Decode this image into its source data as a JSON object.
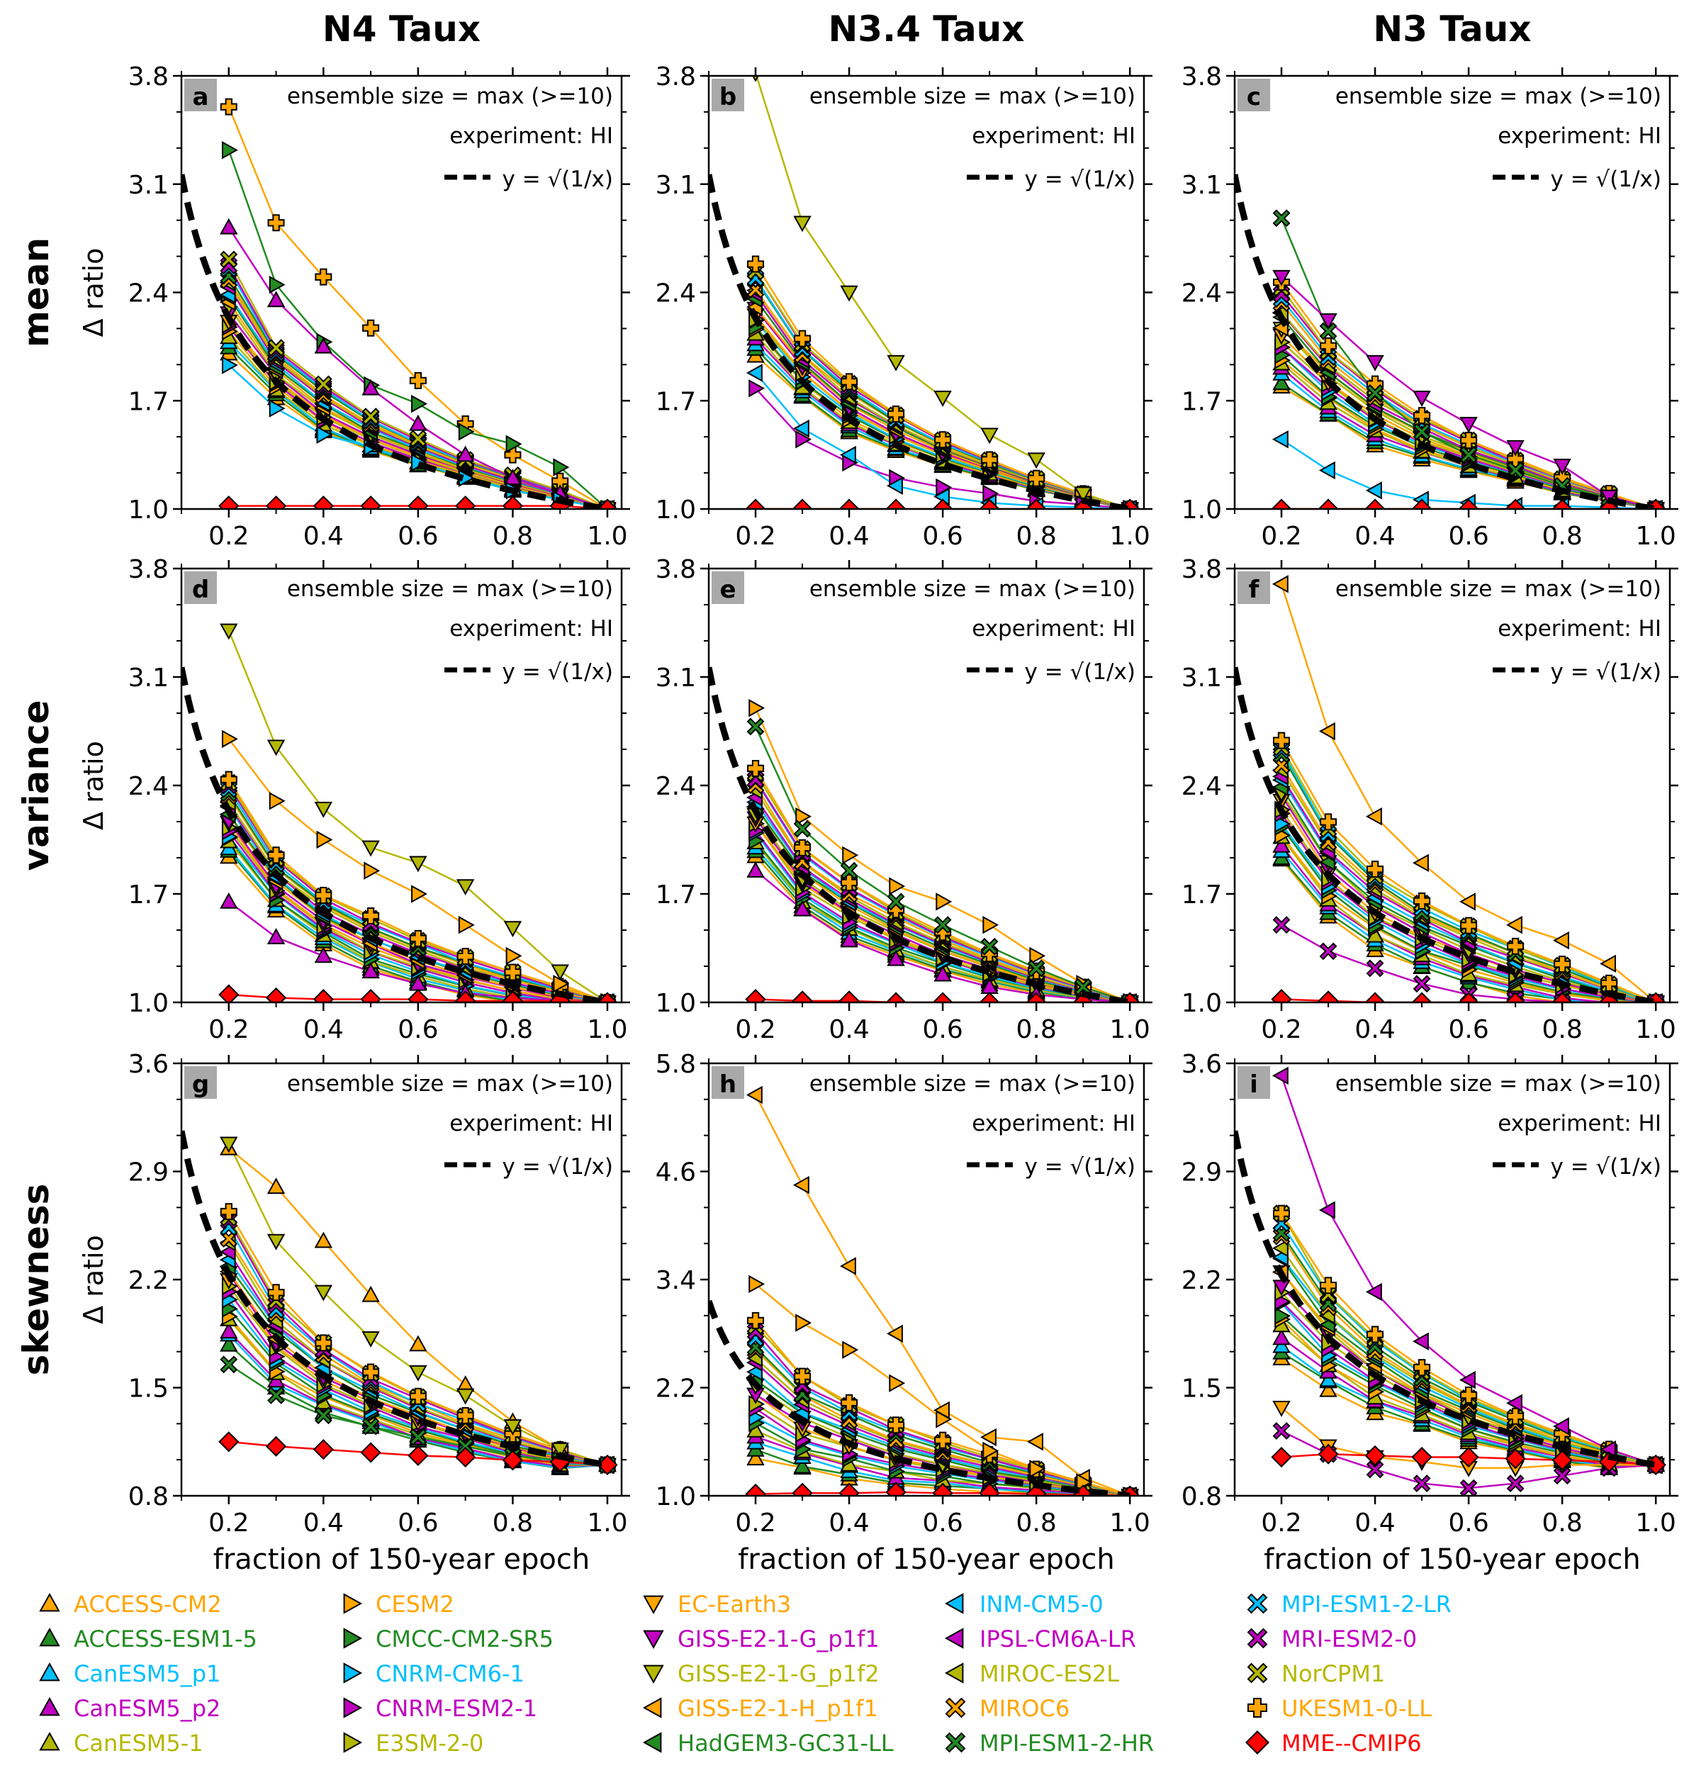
{
  "column_titles": [
    "N4 Taux",
    "N3.4 Taux",
    "N3 Taux"
  ],
  "row_titles": [
    "mean",
    "variance",
    "skewness"
  ],
  "y_axis_label": "Δ ratio",
  "x_axis_label": "fraction of 150-year epoch",
  "annotation_line1": "ensemble size = max (>=10)",
  "annotation_line2": "experiment: HI",
  "reference_label": "y = √(1/x)",
  "colors": {
    "orange": "#FFA500",
    "green": "#228B22",
    "cyan": "#00BFFF",
    "magenta": "#C000C0",
    "olive": "#B5B800",
    "red": "#FF0000",
    "panel_letter_bg": "#A9A9A9"
  },
  "legend": [
    {
      "name": "ACCESS-CM2",
      "marker": "triangle-up",
      "color": "#FFA500"
    },
    {
      "name": "ACCESS-ESM1-5",
      "marker": "triangle-up",
      "color": "#228B22"
    },
    {
      "name": "CanESM5_p1",
      "marker": "triangle-up",
      "color": "#00BFFF"
    },
    {
      "name": "CanESM5_p2",
      "marker": "triangle-up",
      "color": "#C000C0"
    },
    {
      "name": "CanESM5-1",
      "marker": "triangle-up",
      "color": "#B5B800"
    },
    {
      "name": "CESM2",
      "marker": "triangle-right",
      "color": "#FFA500"
    },
    {
      "name": "CMCC-CM2-SR5",
      "marker": "triangle-right",
      "color": "#228B22"
    },
    {
      "name": "CNRM-CM6-1",
      "marker": "triangle-right",
      "color": "#00BFFF"
    },
    {
      "name": "CNRM-ESM2-1",
      "marker": "triangle-right",
      "color": "#C000C0"
    },
    {
      "name": "E3SM-2-0",
      "marker": "triangle-right",
      "color": "#B5B800"
    },
    {
      "name": "EC-Earth3",
      "marker": "triangle-down",
      "color": "#FFA500"
    },
    {
      "name": "GISS-E2-1-G_p1f1",
      "marker": "triangle-down",
      "color": "#C000C0"
    },
    {
      "name": "GISS-E2-1-G_p1f2",
      "marker": "triangle-down",
      "color": "#B5B800"
    },
    {
      "name": "GISS-E2-1-H_p1f1",
      "marker": "triangle-left",
      "color": "#FFA500"
    },
    {
      "name": "HadGEM3-GC31-LL",
      "marker": "triangle-left",
      "color": "#228B22"
    },
    {
      "name": "INM-CM5-0",
      "marker": "triangle-left",
      "color": "#00BFFF"
    },
    {
      "name": "IPSL-CM6A-LR",
      "marker": "triangle-left",
      "color": "#C000C0"
    },
    {
      "name": "MIROC-ES2L",
      "marker": "triangle-left",
      "color": "#B5B800"
    },
    {
      "name": "MIROC6",
      "marker": "x",
      "color": "#FFA500"
    },
    {
      "name": "MPI-ESM1-2-HR",
      "marker": "x",
      "color": "#228B22"
    },
    {
      "name": "MPI-ESM1-2-LR",
      "marker": "x",
      "color": "#00BFFF"
    },
    {
      "name": "MRI-ESM2-0",
      "marker": "x",
      "color": "#C000C0"
    },
    {
      "name": "NorCPM1",
      "marker": "x",
      "color": "#B5B800"
    },
    {
      "name": "UKESM1-0-LL",
      "marker": "plus",
      "color": "#FFA500"
    },
    {
      "name": "MME--CMIP6",
      "marker": "diamond",
      "color": "#FF0000"
    }
  ],
  "chart_data": [
    {
      "id": "a",
      "type": "line",
      "row": "mean",
      "column": "N4 Taux",
      "x": [
        0.2,
        0.3,
        0.4,
        0.5,
        0.6,
        0.7,
        0.8,
        0.9,
        1.0
      ],
      "xlim": [
        0.1,
        1.03
      ],
      "ylim": [
        1.0,
        3.8
      ],
      "yticks": [
        "1.0",
        "1.7",
        "2.4",
        "3.1",
        "3.8"
      ],
      "xticks": [
        "0.2",
        "0.4",
        "0.6",
        "0.8",
        "1.0"
      ],
      "highlight": [
        {
          "name": "UKESM1-0-LL",
          "values": [
            3.6,
            2.85,
            2.5,
            2.17,
            1.83,
            1.55,
            1.35,
            1.18,
            1.0
          ]
        },
        {
          "name": "CMCC-CM2-SR5",
          "values": [
            3.32,
            2.45,
            2.08,
            1.8,
            1.68,
            1.5,
            1.42,
            1.27,
            1.0
          ]
        },
        {
          "name": "CanESM5_p2",
          "values": [
            2.82,
            2.35,
            2.05,
            1.78,
            1.55,
            1.35,
            1.2,
            1.1,
            1.0
          ]
        },
        {
          "name": "CNRM-CM6-1",
          "values": [
            1.93,
            1.65,
            1.48,
            1.4,
            1.3,
            1.2,
            1.12,
            1.06,
            1.0
          ]
        }
      ],
      "spread": [
        2.62,
        2.05,
        1.8,
        1.6,
        1.45,
        1.32,
        1.22,
        1.12,
        1.0
      ],
      "bundle_low": [
        2.0,
        1.72,
        1.5,
        1.37,
        1.28,
        1.2,
        1.12,
        1.06,
        1.0
      ],
      "mme": [
        1.02,
        1.02,
        1.02,
        1.02,
        1.02,
        1.02,
        1.02,
        1.02,
        1.0
      ]
    },
    {
      "id": "b",
      "type": "line",
      "row": "mean",
      "column": "N3.4 Taux",
      "x": [
        0.2,
        0.3,
        0.4,
        0.5,
        0.6,
        0.7,
        0.8,
        0.9,
        1.0
      ],
      "xlim": [
        0.1,
        1.03
      ],
      "ylim": [
        1.0,
        3.8
      ],
      "yticks": [
        "1.0",
        "1.7",
        "2.4",
        "3.1",
        "3.8"
      ],
      "xticks": [
        "0.2",
        "0.4",
        "0.6",
        "0.8",
        "1.0"
      ],
      "highlight": [
        {
          "name": "GISS-E2-1-G_p1f2",
          "values": [
            3.82,
            2.85,
            2.4,
            1.95,
            1.72,
            1.48,
            1.32,
            1.1,
            1.0
          ]
        },
        {
          "name": "CNRM-ESM2-1",
          "values": [
            1.78,
            1.45,
            1.3,
            1.2,
            1.14,
            1.1,
            1.05,
            1.03,
            1.0
          ]
        },
        {
          "name": "INM-CM5-0",
          "values": [
            1.88,
            1.52,
            1.35,
            1.15,
            1.08,
            1.04,
            1.02,
            1.01,
            1.0
          ]
        }
      ],
      "spread": [
        2.58,
        2.1,
        1.82,
        1.62,
        1.45,
        1.32,
        1.2,
        1.1,
        1.0
      ],
      "bundle_low": [
        2.0,
        1.72,
        1.5,
        1.37,
        1.28,
        1.2,
        1.12,
        1.06,
        1.0
      ],
      "mme": [
        1.0,
        1.0,
        1.0,
        1.0,
        1.0,
        1.0,
        1.0,
        1.0,
        1.0
      ]
    },
    {
      "id": "c",
      "type": "line",
      "row": "mean",
      "column": "N3 Taux",
      "x": [
        0.2,
        0.3,
        0.4,
        0.5,
        0.6,
        0.7,
        0.8,
        0.9,
        1.0
      ],
      "xlim": [
        0.1,
        1.03
      ],
      "ylim": [
        1.0,
        3.8
      ],
      "yticks": [
        "1.0",
        "1.7",
        "2.4",
        "3.1",
        "3.8"
      ],
      "xticks": [
        "0.2",
        "0.4",
        "0.6",
        "0.8",
        "1.0"
      ],
      "highlight": [
        {
          "name": "MPI-ESM1-2-HR",
          "values": [
            2.88,
            2.15,
            1.75,
            1.5,
            1.35,
            1.25,
            1.15,
            1.07,
            1.0
          ]
        },
        {
          "name": "GISS-E2-1-G_p1f1",
          "values": [
            2.5,
            2.22,
            1.95,
            1.72,
            1.55,
            1.4,
            1.28,
            1.08,
            1.0
          ]
        },
        {
          "name": "INM-CM5-0",
          "values": [
            1.45,
            1.25,
            1.12,
            1.06,
            1.04,
            1.02,
            1.02,
            1.01,
            1.0
          ]
        }
      ],
      "spread": [
        2.45,
        2.05,
        1.8,
        1.6,
        1.45,
        1.32,
        1.2,
        1.1,
        1.0
      ],
      "bundle_low": [
        1.8,
        1.6,
        1.42,
        1.32,
        1.24,
        1.18,
        1.1,
        1.05,
        1.0
      ],
      "mme": [
        1.0,
        1.0,
        1.0,
        1.0,
        1.0,
        1.0,
        1.0,
        1.0,
        1.0
      ]
    },
    {
      "id": "d",
      "type": "line",
      "row": "variance",
      "column": "N4 Taux",
      "x": [
        0.2,
        0.3,
        0.4,
        0.5,
        0.6,
        0.7,
        0.8,
        0.9,
        1.0
      ],
      "xlim": [
        0.1,
        1.03
      ],
      "ylim": [
        1.0,
        3.8
      ],
      "yticks": [
        "1.0",
        "1.7",
        "2.4",
        "3.1",
        "3.8"
      ],
      "xticks": [
        "0.2",
        "0.4",
        "0.6",
        "0.8",
        "1.0"
      ],
      "highlight": [
        {
          "name": "GISS-E2-1-G_p1f2",
          "values": [
            3.4,
            2.65,
            2.25,
            2.0,
            1.9,
            1.75,
            1.48,
            1.2,
            1.0
          ]
        },
        {
          "name": "CESM2",
          "values": [
            2.7,
            2.3,
            2.05,
            1.85,
            1.7,
            1.5,
            1.3,
            1.12,
            1.0
          ]
        },
        {
          "name": "CanESM5_p2",
          "values": [
            1.65,
            1.42,
            1.3,
            1.2,
            1.12,
            1.06,
            1.03,
            1.01,
            1.0
          ]
        }
      ],
      "spread": [
        2.45,
        1.95,
        1.7,
        1.55,
        1.42,
        1.3,
        1.2,
        1.1,
        1.0
      ],
      "bundle_low": [
        1.95,
        1.6,
        1.38,
        1.22,
        1.12,
        1.05,
        1.0,
        0.98,
        1.0
      ],
      "mme": [
        1.05,
        1.03,
        1.02,
        1.02,
        1.02,
        1.01,
        1.01,
        1.01,
        1.0
      ]
    },
    {
      "id": "e",
      "type": "line",
      "row": "variance",
      "column": "N3.4 Taux",
      "x": [
        0.2,
        0.3,
        0.4,
        0.5,
        0.6,
        0.7,
        0.8,
        0.9,
        1.0
      ],
      "xlim": [
        0.1,
        1.03
      ],
      "ylim": [
        1.0,
        3.8
      ],
      "yticks": [
        "1.0",
        "1.7",
        "2.4",
        "3.1",
        "3.8"
      ],
      "xticks": [
        "0.2",
        "0.4",
        "0.6",
        "0.8",
        "1.0"
      ],
      "highlight": [
        {
          "name": "CESM2",
          "values": [
            2.9,
            2.2,
            1.95,
            1.75,
            1.65,
            1.5,
            1.3,
            1.12,
            1.0
          ]
        },
        {
          "name": "MPI-ESM1-2-HR",
          "values": [
            2.78,
            2.12,
            1.85,
            1.65,
            1.5,
            1.36,
            1.22,
            1.1,
            1.0
          ]
        },
        {
          "name": "CanESM5_p2",
          "values": [
            1.85,
            1.6,
            1.4,
            1.28,
            1.18,
            1.1,
            1.05,
            1.02,
            1.0
          ]
        }
      ],
      "spread": [
        2.5,
        2.0,
        1.78,
        1.6,
        1.45,
        1.32,
        1.2,
        1.1,
        1.0
      ],
      "bundle_low": [
        1.95,
        1.6,
        1.42,
        1.3,
        1.2,
        1.12,
        1.06,
        1.02,
        1.0
      ],
      "mme": [
        1.02,
        1.01,
        1.01,
        1.0,
        1.0,
        1.0,
        1.0,
        1.0,
        1.0
      ]
    },
    {
      "id": "f",
      "type": "line",
      "row": "variance",
      "column": "N3 Taux",
      "x": [
        0.2,
        0.3,
        0.4,
        0.5,
        0.6,
        0.7,
        0.8,
        0.9,
        1.0
      ],
      "xlim": [
        0.1,
        1.03
      ],
      "ylim": [
        1.0,
        3.8
      ],
      "yticks": [
        "1.0",
        "1.7",
        "2.4",
        "3.1",
        "3.8"
      ],
      "xticks": [
        "0.2",
        "0.4",
        "0.6",
        "0.8",
        "1.0"
      ],
      "highlight": [
        {
          "name": "GISS-E2-1-H_p1f1",
          "values": [
            3.7,
            2.75,
            2.2,
            1.9,
            1.65,
            1.5,
            1.4,
            1.25,
            1.0
          ]
        },
        {
          "name": "MRI-ESM2-0",
          "values": [
            1.5,
            1.33,
            1.22,
            1.12,
            1.05,
            1.02,
            1.0,
            1.0,
            1.0
          ]
        }
      ],
      "spread": [
        2.7,
        2.15,
        1.85,
        1.65,
        1.5,
        1.37,
        1.25,
        1.12,
        1.0
      ],
      "bundle_low": [
        1.9,
        1.55,
        1.35,
        1.22,
        1.12,
        1.05,
        1.0,
        0.98,
        1.0
      ],
      "mme": [
        1.02,
        1.01,
        1.0,
        1.0,
        1.0,
        1.0,
        1.0,
        1.0,
        1.0
      ]
    },
    {
      "id": "g",
      "type": "line",
      "row": "skewness",
      "column": "N4 Taux",
      "x": [
        0.2,
        0.3,
        0.4,
        0.5,
        0.6,
        0.7,
        0.8,
        0.9,
        1.0
      ],
      "xlim": [
        0.1,
        1.03
      ],
      "ylim": [
        0.8,
        3.6
      ],
      "yticks": [
        "0.8",
        "1.5",
        "2.2",
        "2.9",
        "3.6"
      ],
      "xticks": [
        "0.2",
        "0.4",
        "0.6",
        "0.8",
        "1.0"
      ],
      "highlight": [
        {
          "name": "ACCESS-CM2",
          "values": [
            3.05,
            2.8,
            2.45,
            2.1,
            1.78,
            1.52,
            1.28,
            1.1,
            1.0
          ]
        },
        {
          "name": "GISS-E2-1-G_p1f2",
          "values": [
            3.08,
            2.45,
            2.12,
            1.82,
            1.6,
            1.45,
            1.25,
            1.1,
            1.0
          ]
        },
        {
          "name": "MPI-ESM1-2-HR",
          "values": [
            1.65,
            1.45,
            1.32,
            1.25,
            1.18,
            1.12,
            1.06,
            1.03,
            1.0
          ]
        }
      ],
      "spread": [
        2.65,
        2.1,
        1.8,
        1.6,
        1.45,
        1.32,
        1.2,
        1.1,
        1.0
      ],
      "bundle_low": [
        1.8,
        1.5,
        1.35,
        1.25,
        1.15,
        1.08,
        1.02,
        0.98,
        1.0
      ],
      "mme": [
        1.15,
        1.12,
        1.1,
        1.08,
        1.06,
        1.05,
        1.03,
        1.02,
        1.0
      ]
    },
    {
      "id": "h",
      "type": "line",
      "row": "skewness",
      "column": "N3.4 Taux",
      "x": [
        0.2,
        0.3,
        0.4,
        0.5,
        0.6,
        0.7,
        0.8,
        0.9,
        1.0
      ],
      "xlim": [
        0.1,
        1.03
      ],
      "ylim": [
        1.0,
        5.8
      ],
      "yticks": [
        "1.0",
        "2.2",
        "3.4",
        "4.6",
        "5.8"
      ],
      "xticks": [
        "0.2",
        "0.4",
        "0.6",
        "0.8",
        "1.0"
      ],
      "highlight": [
        {
          "name": "GISS-E2-1-H_p1f1",
          "values": [
            5.45,
            4.45,
            3.55,
            2.8,
            1.95,
            1.65,
            1.6,
            1.2,
            1.0
          ]
        },
        {
          "name": "CESM2",
          "values": [
            3.35,
            2.92,
            2.62,
            2.25,
            1.85,
            1.5,
            1.3,
            1.15,
            1.0
          ]
        }
      ],
      "spread": [
        2.95,
        2.35,
        2.05,
        1.8,
        1.62,
        1.45,
        1.3,
        1.15,
        1.0
      ],
      "bundle_low": [
        1.45,
        1.3,
        1.2,
        1.12,
        1.08,
        1.05,
        1.03,
        1.01,
        1.0
      ],
      "mme": [
        1.02,
        1.03,
        1.03,
        1.04,
        1.03,
        1.03,
        1.02,
        1.01,
        1.0
      ]
    },
    {
      "id": "i",
      "type": "line",
      "row": "skewness",
      "column": "N3 Taux",
      "x": [
        0.2,
        0.3,
        0.4,
        0.5,
        0.6,
        0.7,
        0.8,
        0.9,
        1.0
      ],
      "xlim": [
        0.1,
        1.03
      ],
      "ylim": [
        0.8,
        3.6
      ],
      "yticks": [
        "0.8",
        "1.5",
        "2.2",
        "2.9",
        "3.6"
      ],
      "xticks": [
        "0.2",
        "0.4",
        "0.6",
        "0.8",
        "1.0"
      ],
      "highlight": [
        {
          "name": "IPSL-CM6A-LR",
          "values": [
            3.52,
            2.65,
            2.12,
            1.8,
            1.55,
            1.4,
            1.25,
            1.1,
            1.0
          ]
        },
        {
          "name": "MRI-ESM2-0",
          "values": [
            1.22,
            1.07,
            0.97,
            0.88,
            0.85,
            0.88,
            0.93,
            0.98,
            1.0
          ]
        },
        {
          "name": "EC-Earth3",
          "values": [
            1.37,
            1.12,
            1.05,
            1.02,
            0.98,
            0.98,
            1.0,
            1.0,
            1.0
          ]
        }
      ],
      "spread": [
        2.65,
        2.15,
        1.85,
        1.62,
        1.45,
        1.32,
        1.2,
        1.1,
        1.0
      ],
      "bundle_low": [
        1.7,
        1.5,
        1.35,
        1.25,
        1.15,
        1.08,
        1.02,
        0.98,
        1.0
      ],
      "mme": [
        1.05,
        1.07,
        1.06,
        1.05,
        1.05,
        1.04,
        1.03,
        1.02,
        1.0
      ]
    }
  ]
}
